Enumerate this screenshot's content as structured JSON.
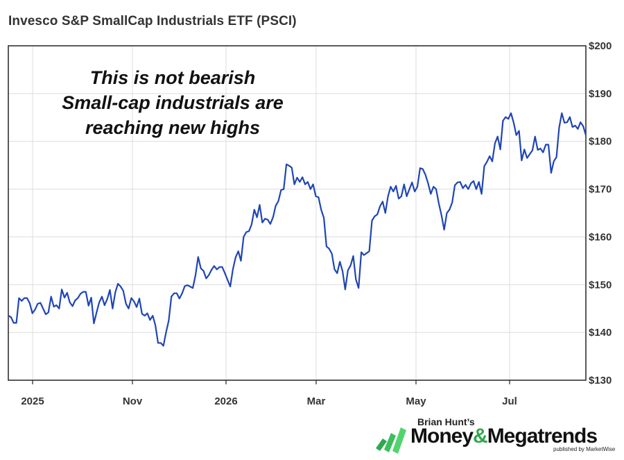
{
  "chart_data": {
    "type": "line",
    "title": "Invesco S&P SmallCap Industrials ETF (PSCI)",
    "annotation_lines": [
      "This is not bearish",
      "Small-cap industrials are",
      "reaching new highs"
    ],
    "x_tick_labels": [
      "2025",
      "Nov",
      "2026",
      "Mar",
      "May",
      "Jul"
    ],
    "y_tick_labels": [
      "$130",
      "$140",
      "$150",
      "$160",
      "$170",
      "$180",
      "$190",
      "$200"
    ],
    "ylim": [
      130,
      200
    ],
    "y_axis_position": "right",
    "grid": "horizontal and vertical",
    "line_color": "#1f45b5",
    "series": [
      {
        "values": [
          143.5,
          143.2,
          142.0,
          142.0,
          147.2,
          146.6,
          147.2,
          147.2,
          146.1,
          144.0,
          144.8,
          146.0,
          146.2,
          145.0,
          143.8,
          144.2,
          147.5,
          145.4,
          145.7,
          145.0,
          149.0,
          147.3,
          148.3,
          146.3,
          145.5,
          146.7,
          147.2,
          148.1,
          148.5,
          148.5,
          145.6,
          147.3,
          141.9,
          144.2,
          146.3,
          147.5,
          145.7,
          147.0,
          148.9,
          145.0,
          148.4,
          150.2,
          149.6,
          148.7,
          146.0,
          145.0,
          147.2,
          146.5,
          145.3,
          147.1,
          143.9,
          143.5,
          144.0,
          142.6,
          143.5,
          141.5,
          137.8,
          137.8,
          137.2,
          140.0,
          142.5,
          147.5,
          148.2,
          148.2,
          147.1,
          148.2,
          149.7,
          149.9,
          149.6,
          149.3,
          152.0,
          155.8,
          153.4,
          152.9,
          151.3,
          152.0,
          153.1,
          153.9,
          153.2,
          153.7,
          153.7,
          152.4,
          151.0,
          149.6,
          153.2,
          155.7,
          157.0,
          155.0,
          160.0,
          161.0,
          161.2,
          162.6,
          165.7,
          164.1,
          166.7,
          163.0,
          163.8,
          163.6,
          162.7,
          164.1,
          166.5,
          167.5,
          169.8,
          170.0,
          175.2,
          174.9,
          174.5,
          171.0,
          172.4,
          171.5,
          172.5,
          171.0,
          171.5,
          170.0,
          171.0,
          168.5,
          168.3,
          165.7,
          164.0,
          158.0,
          157.5,
          156.5,
          153.2,
          152.4,
          154.8,
          152.8,
          149.0,
          153.0,
          154.0,
          156.0,
          151.1,
          149.3,
          156.8,
          156.2,
          156.6,
          157.0,
          163.4,
          164.3,
          164.7,
          166.4,
          167.4,
          165.0,
          168.5,
          170.5,
          169.5,
          170.7,
          168.0,
          168.5,
          171.0,
          168.5,
          170.0,
          171.4,
          169.5,
          170.5,
          174.4,
          174.2,
          173.0,
          171.2,
          169.0,
          170.5,
          170.0,
          167.0,
          164.5,
          161.5,
          165.0,
          165.7,
          167.2,
          170.8,
          171.4,
          171.5,
          170.2,
          170.9,
          170.0,
          171.2,
          171.7,
          170.0,
          171.5,
          169.0,
          174.8,
          175.7,
          176.9,
          175.8,
          179.6,
          181.0,
          178.3,
          184.3,
          185.1,
          184.7,
          185.9,
          183.9,
          181.3,
          182.2,
          176.0,
          178.3,
          176.5,
          177.3,
          178.1,
          181.0,
          178.2,
          178.5,
          177.7,
          179.3,
          179.3,
          173.4,
          175.8,
          176.7,
          182.8,
          185.9,
          183.9,
          184.0,
          185.1,
          183.0,
          183.3,
          182.6,
          184.0,
          183.2,
          181.3
        ]
      }
    ]
  },
  "logo": {
    "kicker": "Brian Hunt’s",
    "name_part1": "Money",
    "name_amp": "&",
    "name_part2": "Megatrends",
    "sub": "published by MarketWise"
  }
}
